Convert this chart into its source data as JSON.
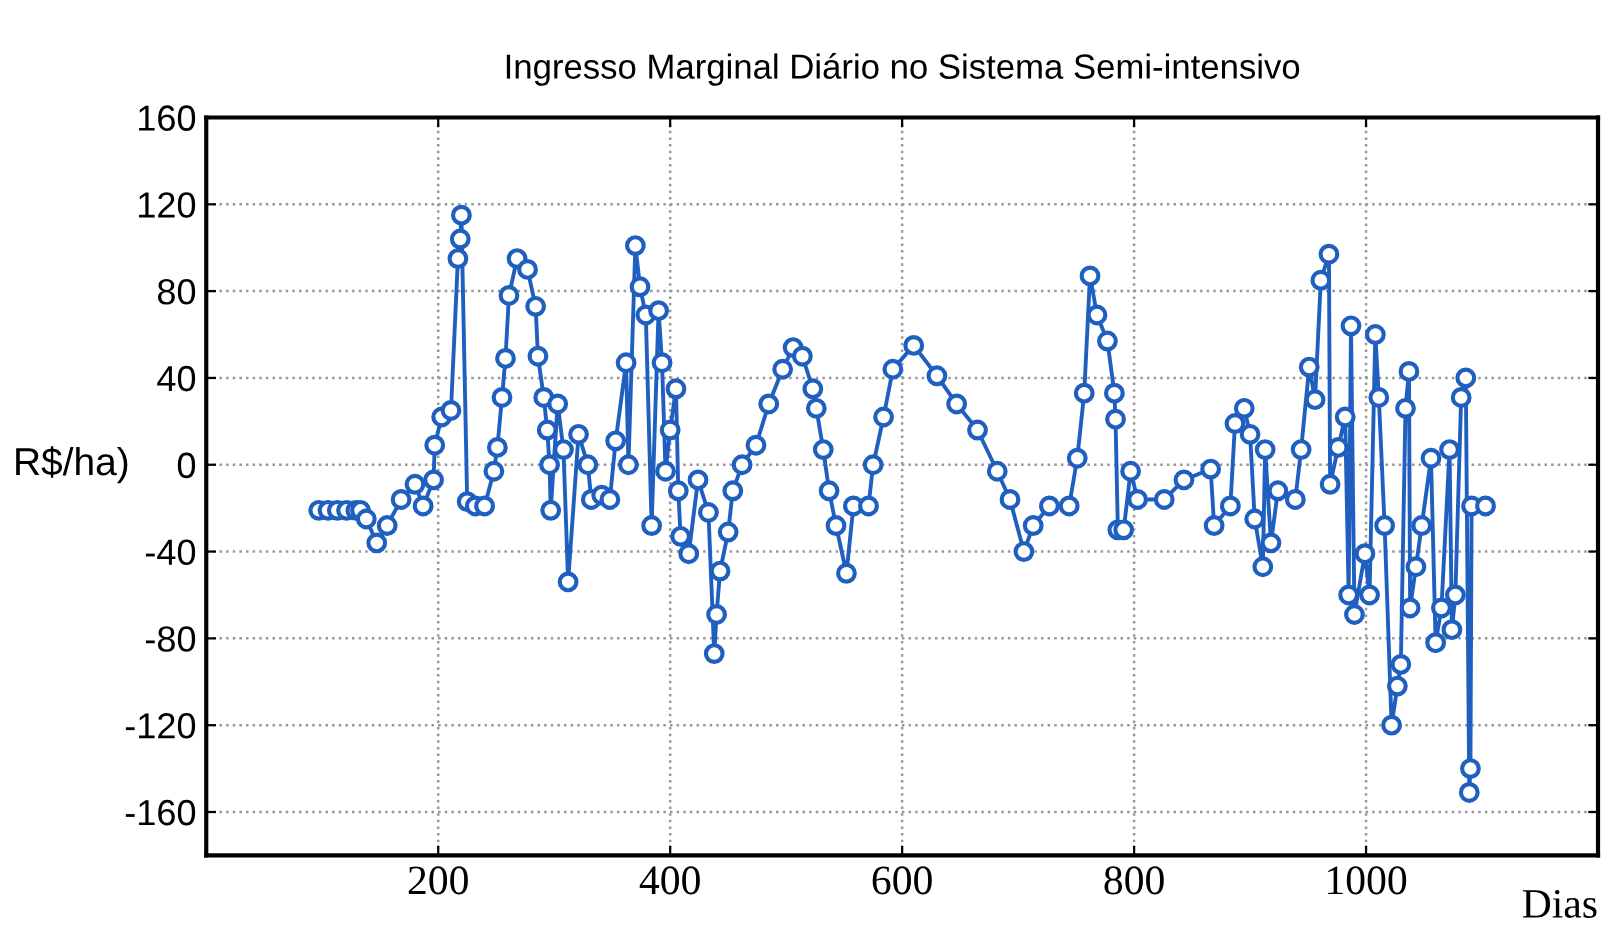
{
  "chart_data": {
    "type": "line",
    "title": "Ingresso Marginal Diário no Sistema Semi-intensivo",
    "xlabel": "Dias",
    "ylabel": "R$/ha)",
    "xlim": [
      0,
      1200
    ],
    "xticks": [
      200,
      400,
      600,
      800,
      1000
    ],
    "ylim": [
      -180,
      160
    ],
    "yticks": [
      -160,
      -120,
      -80,
      -40,
      0,
      40,
      80,
      120,
      160
    ],
    "grid": true,
    "marker": "circle",
    "line_style": "solid",
    "series": [
      {
        "color": "#1f5fc0",
        "x": [
          97,
          105,
          113,
          121,
          129,
          133,
          138,
          147,
          156,
          168,
          180,
          187,
          196,
          197,
          203,
          211,
          217,
          219,
          220,
          225,
          232,
          240,
          248,
          251,
          255,
          258,
          261,
          268,
          277,
          284,
          286,
          291,
          294,
          296,
          297,
          303,
          308,
          312,
          321,
          329,
          332,
          341,
          348,
          353,
          362,
          364,
          370,
          374,
          379,
          384,
          390,
          393,
          396,
          400,
          405,
          407,
          409,
          416,
          424,
          433,
          438,
          440,
          443,
          450,
          454,
          462,
          474,
          485,
          497,
          506,
          514,
          523,
          526,
          532,
          537,
          543,
          552,
          558,
          571,
          575,
          584,
          592,
          610,
          630,
          647,
          665,
          682,
          693,
          705,
          713,
          727,
          744,
          751,
          757,
          762,
          768,
          777,
          783,
          784,
          786,
          791,
          797,
          803,
          826,
          843,
          866,
          869,
          883,
          887,
          895,
          900,
          904,
          911,
          913,
          918,
          924,
          939,
          944,
          951,
          956,
          961,
          968,
          969,
          976,
          982,
          985,
          987,
          990,
          999,
          1003,
          1008,
          1011,
          1016,
          1022,
          1027,
          1030,
          1034,
          1037,
          1038,
          1043,
          1048,
          1056,
          1060,
          1065,
          1072,
          1074,
          1077,
          1082,
          1086,
          1089,
          1090,
          1091,
          1103
        ],
        "values": [
          -21,
          -21,
          -21,
          -21,
          -21,
          -21,
          -25,
          -36,
          -28,
          -16,
          -9,
          -19,
          -7,
          9,
          22,
          25,
          95,
          104,
          115,
          -17,
          -19,
          -19,
          -3,
          8,
          31,
          49,
          78,
          95,
          90,
          73,
          50,
          31,
          16,
          0,
          -21,
          28,
          7,
          -54,
          14,
          0,
          -16,
          -14,
          -16,
          11,
          47,
          0,
          101,
          82,
          69,
          -28,
          71,
          47,
          -3,
          16,
          35,
          -12,
          -33,
          -41,
          -7,
          -22,
          -87,
          -69,
          -49,
          -31,
          -12,
          0,
          9,
          28,
          44,
          54,
          50,
          35,
          26,
          7,
          -12,
          -28,
          -50,
          -19,
          -19,
          0,
          22,
          44,
          55,
          41,
          28,
          16,
          -3,
          -16,
          -40,
          -28,
          -19,
          -19,
          3,
          33,
          87,
          69,
          57,
          33,
          21,
          -30,
          -30,
          -3,
          -16,
          -16,
          -7,
          -2,
          -28,
          -19,
          19,
          26,
          14,
          -25,
          -47,
          7,
          -36,
          -12,
          -16,
          7,
          45,
          30,
          85,
          97,
          -9,
          8,
          22,
          -60,
          64,
          -69,
          -41,
          -60,
          60,
          31,
          -28,
          -120,
          -102,
          -92,
          26,
          43,
          -66,
          -47,
          -28,
          3,
          -82,
          -66,
          7,
          -76,
          -60,
          31,
          40,
          -151,
          -140,
          -19,
          -19
        ]
      }
    ]
  }
}
